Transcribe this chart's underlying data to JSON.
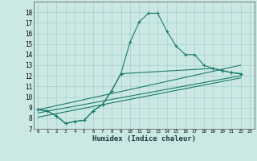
{
  "xlabel": "Humidex (Indice chaleur)",
  "background_color": "#cce8e4",
  "line_color": "#1a7a6e",
  "xlim": [
    -0.5,
    23.5
  ],
  "ylim": [
    7,
    19
  ],
  "xticks": [
    0,
    1,
    2,
    3,
    4,
    5,
    6,
    7,
    8,
    9,
    10,
    11,
    12,
    13,
    14,
    15,
    16,
    17,
    18,
    19,
    20,
    21,
    22,
    23
  ],
  "yticks": [
    7,
    8,
    9,
    10,
    11,
    12,
    13,
    14,
    15,
    16,
    17,
    18
  ],
  "curve1_x": [
    0,
    1,
    2,
    3,
    4,
    5,
    6,
    7,
    8,
    9,
    10,
    11,
    12,
    13,
    14,
    15,
    16,
    17,
    18,
    19,
    20,
    21,
    22
  ],
  "curve1_y": [
    8.8,
    8.7,
    8.2,
    7.5,
    7.7,
    7.8,
    8.7,
    9.3,
    10.6,
    12.2,
    15.2,
    17.1,
    17.9,
    17.9,
    16.2,
    14.8,
    14.0,
    14.0,
    13.0,
    12.7,
    12.5,
    12.3,
    12.2
  ],
  "curve2_x": [
    0,
    1,
    2,
    3,
    4,
    5,
    6,
    7,
    8,
    9,
    19,
    20,
    21,
    22
  ],
  "curve2_y": [
    8.8,
    8.7,
    8.2,
    7.5,
    7.7,
    7.8,
    8.7,
    9.3,
    10.6,
    12.2,
    12.7,
    12.5,
    12.3,
    12.2
  ],
  "line3_x": [
    0,
    22
  ],
  "line3_y": [
    8.8,
    13.0
  ],
  "line4_x": [
    0,
    22
  ],
  "line4_y": [
    8.5,
    12.0
  ],
  "line5_x": [
    0,
    22
  ],
  "line5_y": [
    8.1,
    11.8
  ]
}
